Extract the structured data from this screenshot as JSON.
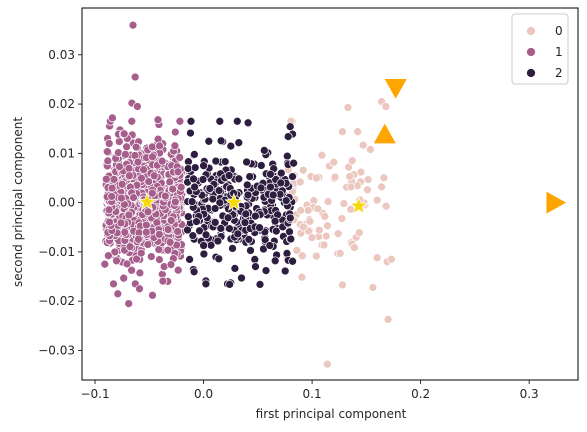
{
  "chart_data": {
    "type": "scatter",
    "xlabel": "first principal component",
    "ylabel": "second principal component",
    "xlim": [
      -0.112,
      0.345
    ],
    "ylim": [
      -0.036,
      0.0395
    ],
    "x_ticks": [
      -0.1,
      0.0,
      0.1,
      0.2,
      0.3
    ],
    "x_tick_labels": [
      "−0.1",
      "0.0",
      "0.1",
      "0.2",
      "0.3"
    ],
    "y_ticks": [
      -0.03,
      -0.02,
      -0.01,
      0.0,
      0.01,
      0.02,
      0.03
    ],
    "y_tick_labels": [
      "−0.03",
      "−0.02",
      "−0.01",
      "0.00",
      "0.01",
      "0.02",
      "0.03"
    ],
    "grid": false,
    "legend": {
      "placement": "top-right",
      "entries": [
        {
          "label": "0",
          "color": "#ecc7c0"
        },
        {
          "label": "1",
          "color": "#a65f8d"
        },
        {
          "label": "2",
          "color": "#2d1d3f"
        }
      ]
    },
    "series": [
      {
        "name": "0",
        "color": "#ecc7c0",
        "cluster": {
          "x_range": [
            0.075,
            0.17
          ],
          "y_mean": 0.0,
          "y_sd": 0.006,
          "count": 70,
          "seed": 11
        },
        "points": [
          [
            0.114,
            -0.0328
          ],
          [
            0.17,
            -0.0237
          ],
          [
            0.164,
            0.0205
          ],
          [
            0.168,
            0.0195
          ],
          [
            0.133,
            0.0193
          ],
          [
            0.128,
            0.0144
          ],
          [
            0.142,
            0.0144
          ],
          [
            0.164,
            0.0032
          ],
          [
            0.16,
            0.0005
          ],
          [
            0.173,
            -0.0115
          ],
          [
            0.16,
            -0.0112
          ],
          [
            0.128,
            -0.0167
          ],
          [
            0.156,
            -0.0172
          ],
          [
            0.12,
            0.0082
          ],
          [
            0.109,
            0.0096
          ],
          [
            0.137,
            0.0085
          ],
          [
            0.099,
            0.0053
          ],
          [
            0.104,
            0.005
          ],
          [
            0.145,
            0.0062
          ],
          [
            0.151,
            0.0026
          ],
          [
            0.124,
            -0.0063
          ],
          [
            0.111,
            -0.0086
          ],
          [
            0.137,
            -0.0084
          ],
          [
            0.139,
            -0.0091
          ],
          [
            0.086,
            -0.0097
          ],
          [
            0.091,
            -0.0108
          ],
          [
            0.098,
            -0.0038
          ],
          [
            0.089,
            0.0042
          ]
        ]
      },
      {
        "name": "1",
        "color": "#a65f8d",
        "cluster": {
          "x_range": [
            -0.09,
            -0.02
          ],
          "y_mean": 0.0,
          "y_sd": 0.0055,
          "count": 900,
          "seed": 7
        },
        "points": [
          [
            -0.065,
            0.036
          ],
          [
            -0.063,
            0.0255
          ],
          [
            -0.066,
            0.0202
          ],
          [
            -0.061,
            0.0195
          ],
          [
            -0.084,
            0.0172
          ],
          [
            -0.042,
            0.0168
          ],
          [
            -0.069,
            -0.0205
          ],
          [
            -0.079,
            -0.0185
          ],
          [
            -0.047,
            -0.0188
          ],
          [
            -0.083,
            -0.0165
          ],
          [
            -0.091,
            -0.0125
          ],
          [
            -0.059,
            -0.0175
          ]
        ]
      },
      {
        "name": "2",
        "color": "#2d1d3f",
        "cluster": {
          "x_range": [
            -0.015,
            0.082
          ],
          "y_mean": 0.0,
          "y_sd": 0.0058,
          "count": 320,
          "seed": 3
        },
        "points": [
          [
            0.041,
            0.0162
          ],
          [
            0.082,
            0.0139
          ],
          [
            0.078,
            0.0134
          ],
          [
            -0.012,
            0.0141
          ],
          [
            0.056,
            0.0106
          ],
          [
            0.078,
            0.0077
          ],
          [
            0.083,
            0.008
          ],
          [
            0.078,
            -0.0117
          ],
          [
            0.082,
            -0.0119
          ],
          [
            0.066,
            -0.0118
          ],
          [
            0.035,
            -0.0153
          ],
          [
            0.052,
            -0.0166
          ],
          [
            0.025,
            -0.0163
          ],
          [
            0.024,
            -0.0166
          ],
          [
            0.014,
            -0.0114
          ],
          [
            0.061,
            -0.0087
          ],
          [
            0.0,
            0.0075
          ],
          [
            0.0,
            -0.0087
          ]
        ]
      }
    ],
    "centroids": {
      "marker": "star",
      "color": "#f5d90a",
      "points": [
        [
          -0.052,
          0.0001
        ],
        [
          0.028,
          0.0
        ],
        [
          0.143,
          -0.0007
        ]
      ]
    },
    "extra_markers": {
      "color": "#ffa500",
      "points": [
        {
          "x": 0.177,
          "y": 0.0233,
          "marker": "triangle-down"
        },
        {
          "x": 0.167,
          "y": 0.0138,
          "marker": "triangle-up"
        },
        {
          "x": 0.324,
          "y": 0.0,
          "marker": "triangle-right"
        }
      ]
    }
  }
}
